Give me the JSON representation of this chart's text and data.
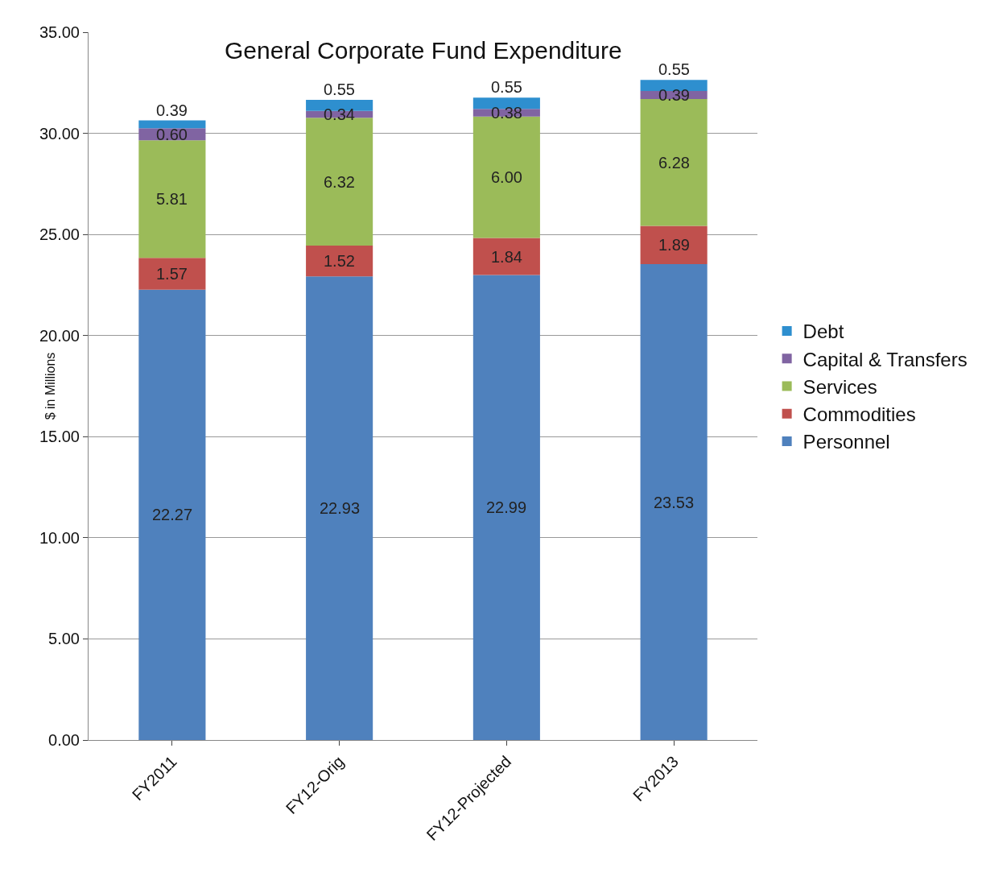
{
  "chart_data": {
    "type": "bar",
    "title": "General Corporate Fund Expenditure",
    "ylabel": "$ in Millions",
    "stacked": true,
    "grid": "y",
    "legend": "right",
    "categories": [
      "FY2011",
      "FY12-Orig",
      "FY12-Projected",
      "FY2013"
    ],
    "ylim": [
      0,
      35
    ],
    "yticks": [
      {
        "value": 0,
        "label": "0.00"
      },
      {
        "value": 5,
        "label": "5.00"
      },
      {
        "value": 10,
        "label": "10.00"
      },
      {
        "value": 15,
        "label": "15.00"
      },
      {
        "value": 20,
        "label": "20.00"
      },
      {
        "value": 25,
        "label": "25.00"
      },
      {
        "value": 30,
        "label": "30.00"
      },
      {
        "value": 35,
        "label": "35.00"
      }
    ],
    "series": [
      {
        "name": "Personnel",
        "color": "#4f81bd",
        "values": [
          22.27,
          22.93,
          22.99,
          23.53
        ],
        "value_labels": [
          "22.27",
          "22.93",
          "22.99",
          "23.53"
        ]
      },
      {
        "name": "Commodities",
        "color": "#c0504d",
        "values": [
          1.57,
          1.52,
          1.84,
          1.89
        ],
        "value_labels": [
          "1.57",
          "1.52",
          "1.84",
          "1.89"
        ]
      },
      {
        "name": "Services",
        "color": "#9bbb59",
        "values": [
          5.81,
          6.32,
          6.0,
          6.28
        ],
        "value_labels": [
          "5.81",
          "6.32",
          "6.00",
          "6.28"
        ]
      },
      {
        "name": "Capital & Transfers",
        "color": "#8064a2",
        "values": [
          0.6,
          0.34,
          0.38,
          0.39
        ],
        "value_labels": [
          "0.60",
          "0.34",
          "0.38",
          "0.39"
        ]
      },
      {
        "name": "Debt",
        "color": "#2e8fcf",
        "values": [
          0.39,
          0.55,
          0.55,
          0.55
        ],
        "value_labels": [
          "0.39",
          "0.55",
          "0.55",
          "0.55"
        ]
      }
    ]
  }
}
